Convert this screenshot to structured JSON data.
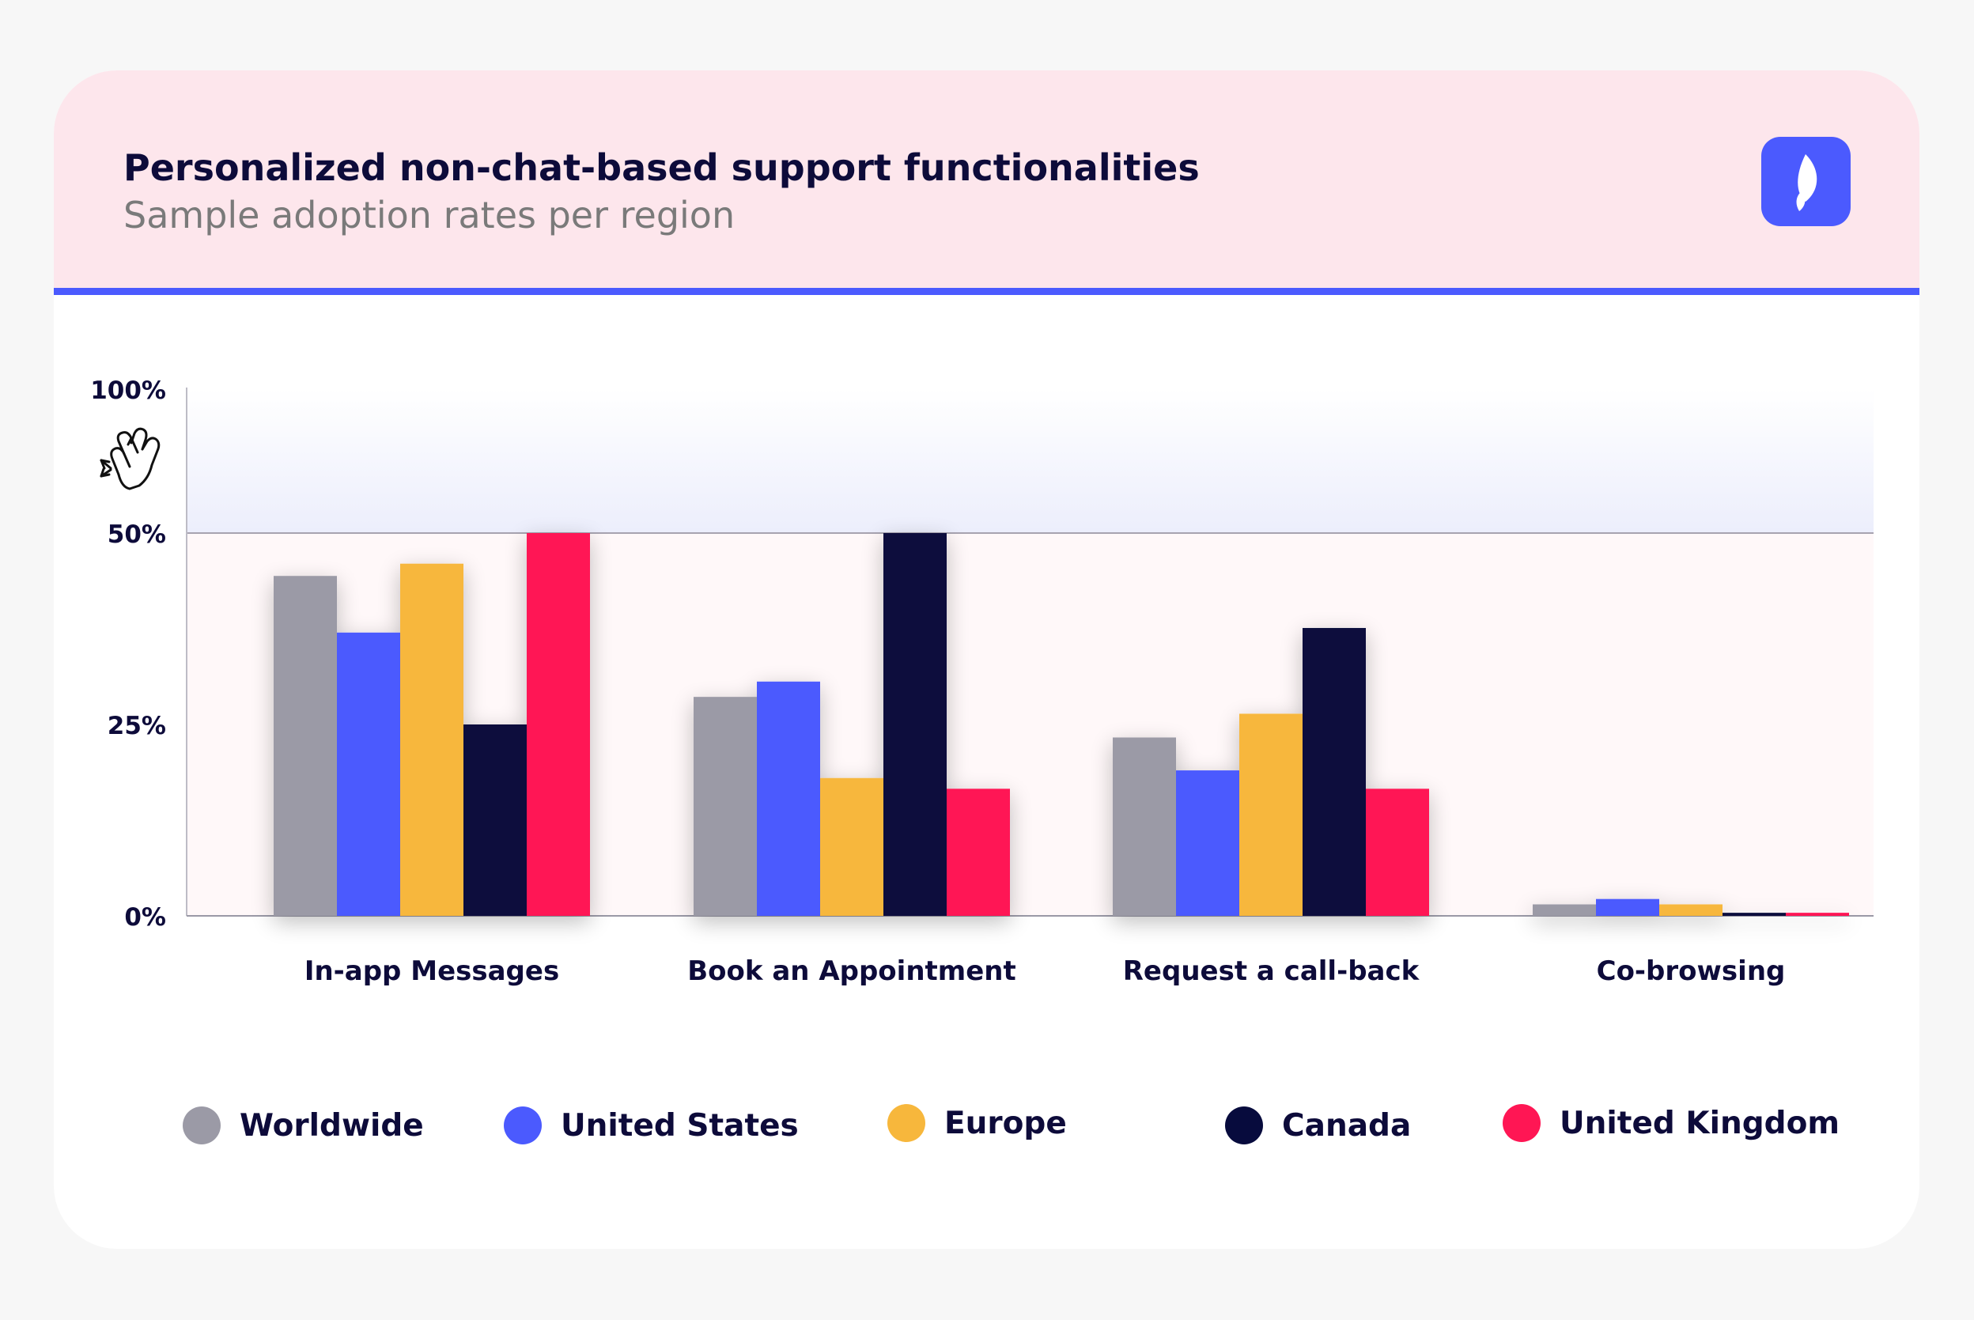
{
  "header": {
    "title": "Personalized non-chat-based support functionalities",
    "subtitle": "Sample adoption rates per region"
  },
  "icons": {
    "logo": "brand-flame-logo-icon",
    "zoom_hint": "hand-pinch-gesture-icon"
  },
  "colors": {
    "accent": "#4b5afe",
    "header_bg": "#fde6ec",
    "Worldwide": "#9b9aa6",
    "United States": "#4b5afe",
    "Europe": "#f7b73c",
    "Canada": "#070b3d",
    "United Kingdom": "#ff1654"
  },
  "chart_data": {
    "type": "bar",
    "title": "Personalized non-chat-based support functionalities",
    "subtitle": "Sample adoption rates per region",
    "xlabel": "",
    "ylabel": "",
    "y_ticks": [
      {
        "value": 0,
        "label": "0%"
      },
      {
        "value": 25,
        "label": "25%"
      },
      {
        "value": 50,
        "label": "50%"
      },
      {
        "value": 100,
        "label": "100%"
      }
    ],
    "ylim": [
      0,
      100
    ],
    "y_axis_scale": "broken: 0-50% shown at full scale, 50-100% compressed",
    "legend_position": "bottom",
    "grid": false,
    "categories": [
      "In-app Messages",
      "Book an Appointment",
      "Request a call-back",
      "Co-browsing"
    ],
    "series": [
      {
        "name": "Worldwide",
        "values": [
          44.4,
          28.6,
          23.3,
          1.5
        ]
      },
      {
        "name": "United States",
        "values": [
          37,
          30.6,
          19,
          2.2
        ]
      },
      {
        "name": "Europe",
        "values": [
          46,
          18,
          26.4,
          1.5
        ]
      },
      {
        "name": "Canada",
        "values": [
          25,
          50,
          37.6,
          0.4
        ]
      },
      {
        "name": "United Kingdom",
        "values": [
          50,
          16.6,
          16.6,
          0.4
        ]
      }
    ]
  }
}
